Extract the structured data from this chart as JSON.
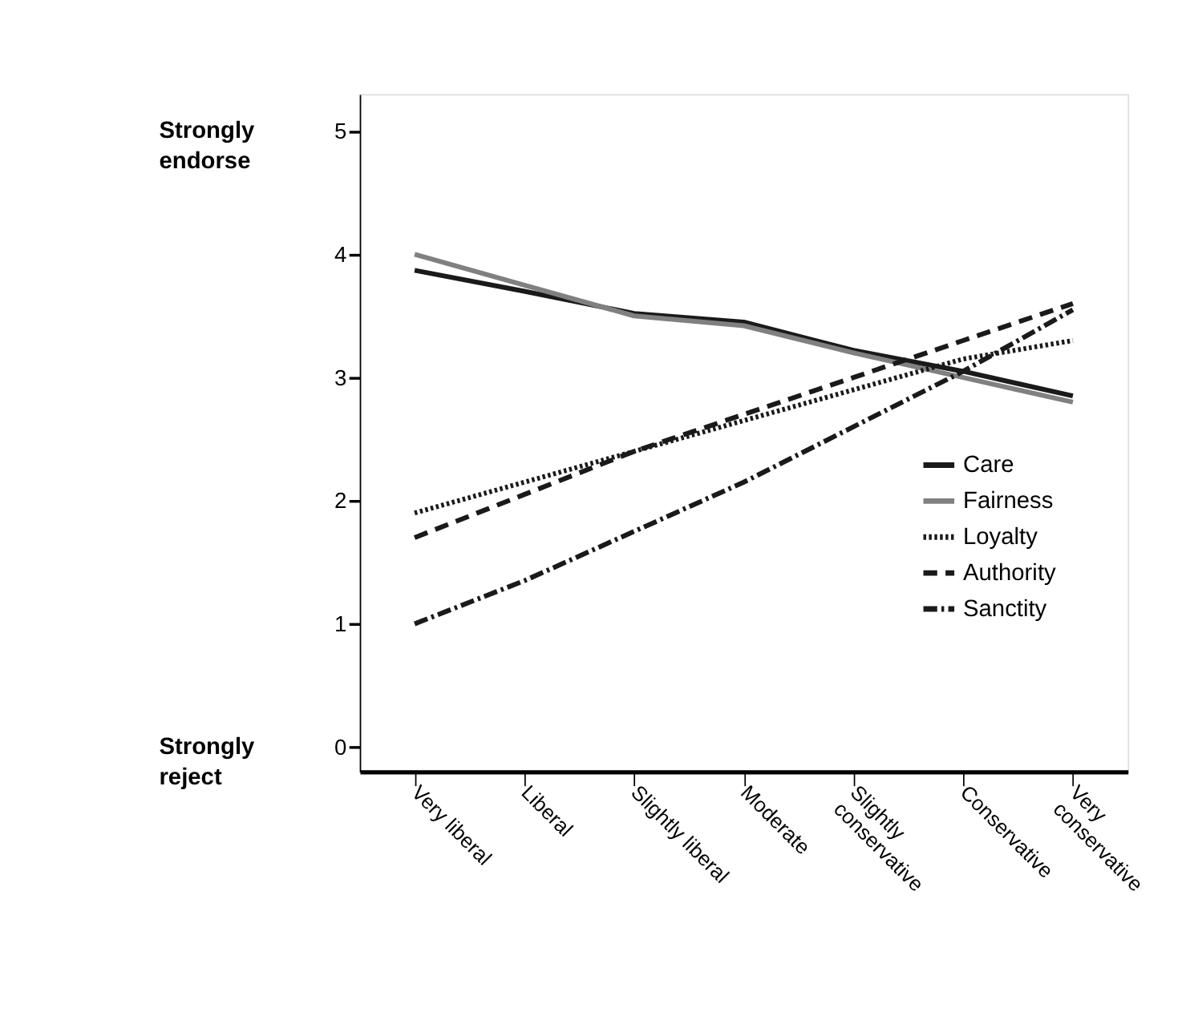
{
  "chart_data": {
    "type": "line",
    "categories": [
      "Very liberal",
      "Liberal",
      "Slightly liberal",
      "Moderate",
      "Slightly conservative",
      "Conservative",
      "Very conservative"
    ],
    "series": [
      {
        "name": "Care",
        "color": "#1a1a1a",
        "line_style": "solid",
        "values": [
          3.87,
          3.7,
          3.52,
          3.45,
          3.22,
          3.05,
          2.85
        ]
      },
      {
        "name": "Fairness",
        "color": "#808080",
        "line_style": "solid",
        "values": [
          4.0,
          3.75,
          3.5,
          3.42,
          3.2,
          3.0,
          2.8
        ]
      },
      {
        "name": "Loyalty",
        "color": "#1a1a1a",
        "line_style": "dotted",
        "values": [
          1.9,
          2.15,
          2.4,
          2.65,
          2.9,
          3.15,
          3.3
        ]
      },
      {
        "name": "Authority",
        "color": "#1a1a1a",
        "line_style": "dashed",
        "values": [
          1.7,
          2.05,
          2.4,
          2.7,
          3.0,
          3.3,
          3.6
        ]
      },
      {
        "name": "Sanctity",
        "color": "#1a1a1a",
        "line_style": "dashdot",
        "values": [
          1.0,
          1.35,
          1.75,
          2.15,
          2.6,
          3.05,
          3.55
        ]
      }
    ],
    "ylim": [
      -0.2,
      5.3
    ],
    "yticks": [
      {
        "value": 0,
        "label": "0"
      },
      {
        "value": 1,
        "label": "1"
      },
      {
        "value": 2,
        "label": "2"
      },
      {
        "value": 3,
        "label": "3"
      },
      {
        "value": 4,
        "label": "4"
      },
      {
        "value": 5,
        "label": "5"
      }
    ],
    "annotations": [
      "Strongly endorse",
      "Strongly reject"
    ],
    "grid": false,
    "legend": "right",
    "marker": "none"
  }
}
